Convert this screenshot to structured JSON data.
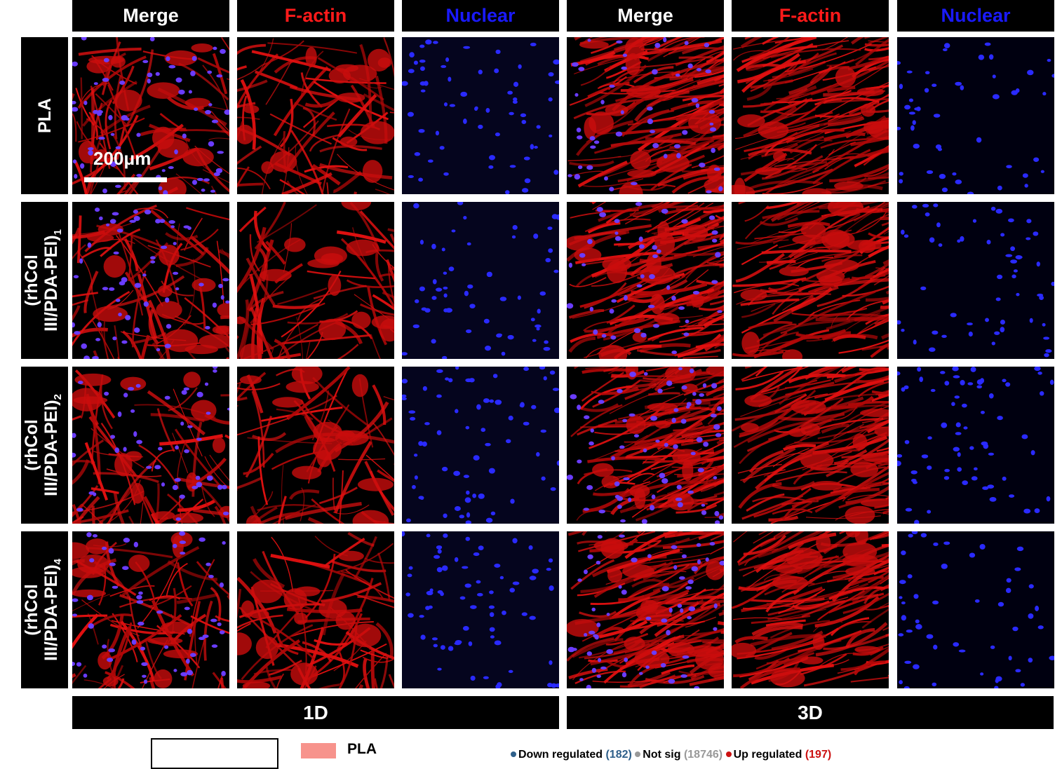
{
  "column_headers": [
    {
      "label": "Merge",
      "color": "#ffffff"
    },
    {
      "label": "F-actin",
      "color": "#ff1a1a"
    },
    {
      "label": "Nuclear",
      "color": "#1a1aff"
    },
    {
      "label": "Merge",
      "color": "#ffffff"
    },
    {
      "label": "F-actin",
      "color": "#ff1a1a"
    },
    {
      "label": "Nuclear",
      "color": "#1a1aff"
    }
  ],
  "row_labels": [
    {
      "line1": "PLA",
      "line2": "",
      "sub": ""
    },
    {
      "line1": "(rhCol",
      "line2": "III/PDA-PEI)",
      "sub": "1"
    },
    {
      "line1": "(rhCol",
      "line2": "III/PDA-PEI)",
      "sub": "2"
    },
    {
      "line1": "(rhCol",
      "line2": "III/PDA-PEI)",
      "sub": "4"
    }
  ],
  "scale_bar_label": "200μm",
  "timepoints": [
    "1D",
    "3D"
  ],
  "legend": {
    "swatch_label": "PLA",
    "swatch_color": "#f7938c"
  },
  "volcano_legend": {
    "down": {
      "label": "Down regulated",
      "count": "(182)",
      "color": "#2e5f8a"
    },
    "notsig": {
      "label": "Not sig",
      "count": "(18746)",
      "color": "#999999"
    },
    "up": {
      "label": "Up regulated",
      "count": "(197)",
      "color": "#cc1111"
    }
  },
  "panel_types": [
    "merge",
    "factin",
    "nuclear",
    "merge",
    "factin",
    "nuclear"
  ]
}
